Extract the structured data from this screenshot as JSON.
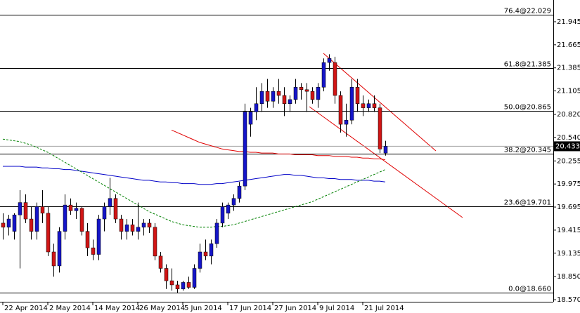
{
  "chart_data": {
    "type": "candlestick",
    "ylim": [
      18.545,
      22.209
    ],
    "yticks": [
      {
        "value": 18.57,
        "label": "18.570"
      },
      {
        "value": 18.85,
        "label": "18.850"
      },
      19.135,
      19.415,
      19.695,
      19.975,
      20.255,
      {
        "value": 20.54,
        "label": "20.540"
      },
      {
        "value": 20.82,
        "label": "20.820"
      },
      21.105,
      21.385,
      21.665,
      21.945
    ],
    "categories": [
      "22 Apr 2014",
      null,
      null,
      null,
      null,
      null,
      null,
      null,
      "2 May 2014",
      null,
      null,
      null,
      null,
      null,
      null,
      null,
      "14 May 2014",
      null,
      null,
      null,
      null,
      null,
      null,
      null,
      "26 May 2014",
      null,
      null,
      null,
      null,
      null,
      null,
      null,
      "5 Jun 2014",
      null,
      null,
      null,
      null,
      null,
      null,
      null,
      "17 Jun 2014",
      null,
      null,
      null,
      null,
      null,
      null,
      null,
      "27 Jun 2014",
      null,
      null,
      null,
      null,
      null,
      null,
      null,
      "9 Jul 2014",
      null,
      null,
      null,
      null,
      null,
      null,
      null,
      "21 Jul 2014",
      null,
      null,
      null,
      null
    ],
    "open": [
      19.5,
      19.45,
      19.4,
      19.6,
      19.75,
      19.55,
      19.4,
      19.7,
      19.62,
      19.15,
      18.98,
      19.4,
      19.72,
      19.65,
      19.68,
      19.4,
      19.2,
      19.12,
      19.55,
      19.7,
      19.8,
      19.55,
      19.4,
      19.48,
      19.4,
      19.45,
      19.5,
      19.45,
      19.1,
      18.95,
      18.8,
      18.75,
      18.7,
      18.78,
      18.72,
      18.95,
      19.15,
      19.1,
      19.25,
      19.5,
      19.62,
      19.72,
      19.8,
      19.95,
      20.7,
      20.85,
      20.95,
      21.1,
      20.98,
      21.1,
      21.05,
      20.95,
      21.0,
      21.15,
      21.12,
      21.1,
      21.0,
      21.15,
      21.45,
      21.45,
      21.05,
      20.7,
      20.75,
      21.15,
      20.95,
      20.9,
      20.95,
      20.9,
      20.35
    ],
    "high": [
      19.62,
      19.6,
      19.62,
      19.9,
      19.85,
      19.7,
      19.75,
      19.9,
      19.7,
      19.25,
      19.45,
      19.85,
      19.8,
      19.75,
      19.7,
      19.5,
      19.3,
      19.6,
      19.75,
      20.05,
      19.85,
      19.6,
      19.55,
      19.55,
      19.75,
      19.55,
      19.55,
      19.5,
      19.15,
      19.0,
      18.95,
      18.8,
      18.8,
      18.85,
      19.0,
      19.25,
      19.3,
      19.3,
      19.55,
      19.75,
      19.75,
      19.85,
      20.0,
      20.95,
      20.9,
      21.15,
      21.2,
      21.25,
      21.15,
      21.25,
      21.15,
      21.05,
      21.25,
      21.2,
      21.2,
      21.15,
      21.2,
      21.5,
      21.55,
      21.52,
      21.1,
      20.95,
      21.25,
      21.25,
      21.05,
      21.0,
      21.05,
      20.95,
      20.5
    ],
    "low": [
      19.3,
      19.35,
      19.3,
      18.95,
      19.5,
      19.3,
      19.3,
      19.5,
      19.1,
      18.85,
      18.9,
      19.3,
      19.6,
      19.55,
      19.35,
      19.1,
      19.05,
      19.05,
      19.4,
      19.6,
      19.5,
      19.3,
      19.3,
      19.35,
      19.3,
      19.35,
      19.38,
      19.05,
      18.9,
      18.7,
      18.68,
      18.65,
      18.68,
      18.7,
      18.7,
      18.9,
      19.05,
      19.0,
      19.2,
      19.45,
      19.55,
      19.65,
      19.75,
      19.9,
      20.55,
      20.75,
      20.85,
      20.9,
      20.9,
      20.95,
      20.8,
      20.85,
      20.95,
      21.0,
      20.85,
      20.95,
      20.9,
      21.1,
      21.35,
      20.95,
      20.6,
      20.55,
      20.7,
      20.85,
      20.8,
      20.85,
      20.85,
      20.35,
      20.32
    ],
    "close": [
      19.45,
      19.55,
      19.6,
      19.75,
      19.55,
      19.4,
      19.7,
      19.62,
      19.15,
      18.98,
      19.4,
      19.72,
      19.65,
      19.68,
      19.4,
      19.2,
      19.12,
      19.55,
      19.7,
      19.8,
      19.55,
      19.4,
      19.48,
      19.4,
      19.45,
      19.5,
      19.45,
      19.1,
      18.95,
      18.8,
      18.75,
      18.7,
      18.78,
      18.72,
      18.95,
      19.15,
      19.1,
      19.25,
      19.5,
      19.7,
      19.72,
      19.8,
      19.95,
      20.85,
      20.85,
      20.95,
      21.1,
      20.98,
      21.1,
      21.05,
      20.95,
      21.0,
      21.15,
      21.12,
      21.1,
      21.0,
      21.15,
      21.45,
      21.5,
      21.05,
      20.7,
      20.75,
      21.15,
      20.95,
      20.9,
      20.95,
      20.9,
      20.4,
      20.433
    ],
    "up_color": "#1515c8",
    "down_color": "#d01515",
    "overlays": [
      {
        "color": "#0000c8",
        "dashed": false,
        "values": [
          20.19,
          20.19,
          20.19,
          20.19,
          20.18,
          20.18,
          20.18,
          20.17,
          20.17,
          20.16,
          20.16,
          20.15,
          20.15,
          20.14,
          20.13,
          20.12,
          20.11,
          20.1,
          20.09,
          20.08,
          20.07,
          20.06,
          20.05,
          20.04,
          20.03,
          20.02,
          20.02,
          20.01,
          20.0,
          20.0,
          19.99,
          19.99,
          19.98,
          19.98,
          19.98,
          19.97,
          19.97,
          19.97,
          19.98,
          19.98,
          19.99,
          20.0,
          20.01,
          20.02,
          20.03,
          20.04,
          20.05,
          20.06,
          20.07,
          20.08,
          20.09,
          20.09,
          20.08,
          20.08,
          20.07,
          20.06,
          20.05,
          20.05,
          20.04,
          20.04,
          20.03,
          20.03,
          20.03,
          20.02,
          20.02,
          20.02,
          20.01,
          20.01,
          20.0
        ]
      },
      {
        "color": "#008000",
        "dashed": true,
        "values": [
          20.52,
          20.51,
          20.5,
          20.49,
          20.47,
          20.45,
          20.42,
          20.39,
          20.36,
          20.32,
          20.28,
          20.24,
          20.2,
          20.16,
          20.12,
          20.08,
          20.04,
          20.0,
          19.96,
          19.92,
          19.88,
          19.84,
          19.8,
          19.76,
          19.72,
          19.68,
          19.64,
          19.61,
          19.58,
          19.55,
          19.52,
          19.5,
          19.48,
          19.47,
          19.46,
          19.45,
          19.45,
          19.45,
          19.46,
          19.46,
          19.47,
          19.48,
          19.5,
          19.52,
          19.54,
          19.56,
          19.58,
          19.6,
          19.62,
          19.64,
          19.66,
          19.68,
          19.7,
          19.72,
          19.74,
          19.76,
          19.79,
          19.82,
          19.85,
          19.88,
          19.91,
          19.94,
          19.97,
          20.0,
          20.03,
          20.06,
          20.09,
          20.12,
          20.15
        ]
      },
      {
        "color": "#e00000",
        "dashed": false,
        "values": [
          null,
          null,
          null,
          null,
          null,
          null,
          null,
          null,
          null,
          null,
          null,
          null,
          null,
          null,
          null,
          null,
          null,
          null,
          null,
          null,
          null,
          null,
          null,
          null,
          null,
          null,
          null,
          null,
          null,
          null,
          20.63,
          20.6,
          20.57,
          20.54,
          20.51,
          20.48,
          20.46,
          20.44,
          20.42,
          20.4,
          20.39,
          20.38,
          20.37,
          20.37,
          20.36,
          20.36,
          20.35,
          20.35,
          20.35,
          20.34,
          20.34,
          20.34,
          20.33,
          20.33,
          20.33,
          20.33,
          20.32,
          20.32,
          20.32,
          20.31,
          20.31,
          20.31,
          20.3,
          20.3,
          20.29,
          20.29,
          20.28,
          20.28,
          20.27
        ]
      }
    ],
    "levels": [
      {
        "value": 22.029,
        "label": "76.4@22.029"
      },
      {
        "value": 21.385,
        "label": "61.8@21.385"
      },
      {
        "value": 20.865,
        "label": "50.0@20.865"
      },
      {
        "value": 20.345,
        "label": "38.2@20.345"
      },
      {
        "value": 19.701,
        "label": "23.6@19.701"
      },
      {
        "value": 18.66,
        "label": "0.0@18.660"
      }
    ],
    "last_price": {
      "value": 20.433,
      "label": "20.433"
    }
  }
}
